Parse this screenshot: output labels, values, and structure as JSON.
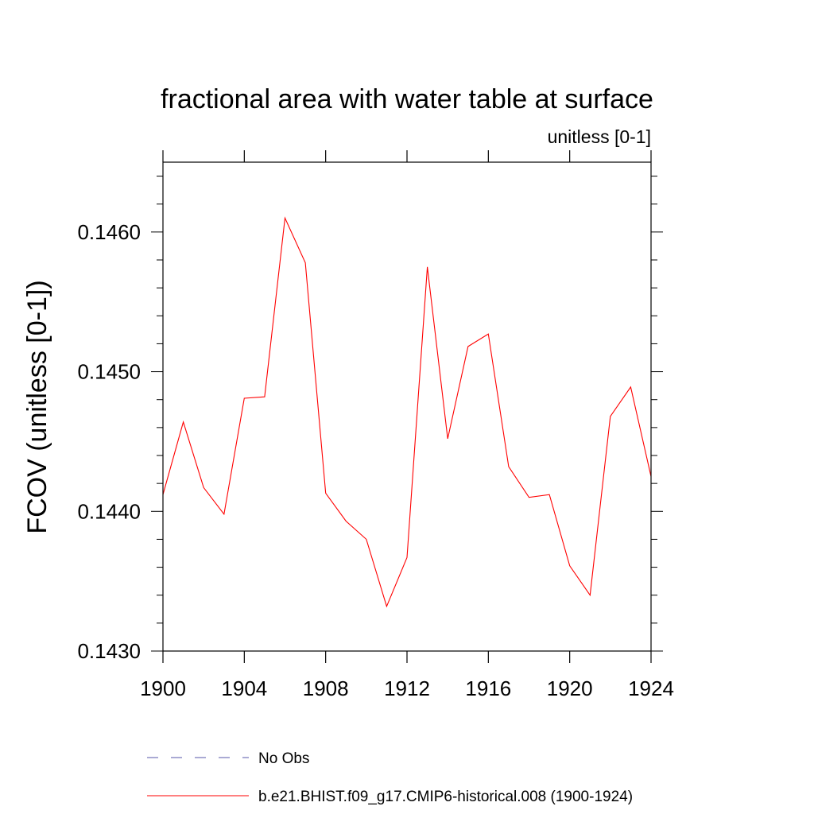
{
  "chart_data": {
    "type": "line",
    "title": "fractional area with water table at surface",
    "subtitle": "unitless [0-1]",
    "ylabel": "FCOV  (unitless [0-1])",
    "xlabel": "",
    "xlim": [
      1900,
      1924
    ],
    "ylim": [
      0.143,
      0.1465
    ],
    "x_ticks": [
      1900,
      1904,
      1908,
      1912,
      1916,
      1920,
      1924
    ],
    "x_tick_labels": [
      "1900",
      "1904",
      "1908",
      "1912",
      "1916",
      "1920",
      "1924"
    ],
    "y_ticks": [
      0.143,
      0.144,
      0.145,
      0.146
    ],
    "y_tick_labels": [
      "0.1430",
      "0.1440",
      "0.1450",
      "0.1460"
    ],
    "grid": false,
    "legend_position": "bottom",
    "x": [
      1900,
      1901,
      1902,
      1903,
      1904,
      1905,
      1906,
      1907,
      1908,
      1909,
      1910,
      1911,
      1912,
      1913,
      1914,
      1915,
      1916,
      1917,
      1918,
      1919,
      1920,
      1921,
      1922,
      1923,
      1924
    ],
    "series": [
      {
        "name": "b.e21.BHIST.f09_g17.CMIP6-historical.008 (1900-1924)",
        "color": "#ff0000",
        "style": "solid",
        "values": [
          0.14412,
          0.14464,
          0.14417,
          0.14398,
          0.14481,
          0.14482,
          0.1461,
          0.14578,
          0.14413,
          0.14393,
          0.1438,
          0.14332,
          0.14367,
          0.14575,
          0.14452,
          0.14518,
          0.14527,
          0.14432,
          0.1441,
          0.14412,
          0.14361,
          0.1434,
          0.14468,
          0.14489,
          0.14425
        ]
      }
    ],
    "legend": [
      {
        "name": "No Obs",
        "color": "#5555aa",
        "style": "dashed"
      },
      {
        "name": "b.e21.BHIST.f09_g17.CMIP6-historical.008 (1900-1924)",
        "color": "#ff0000",
        "style": "solid"
      }
    ]
  }
}
